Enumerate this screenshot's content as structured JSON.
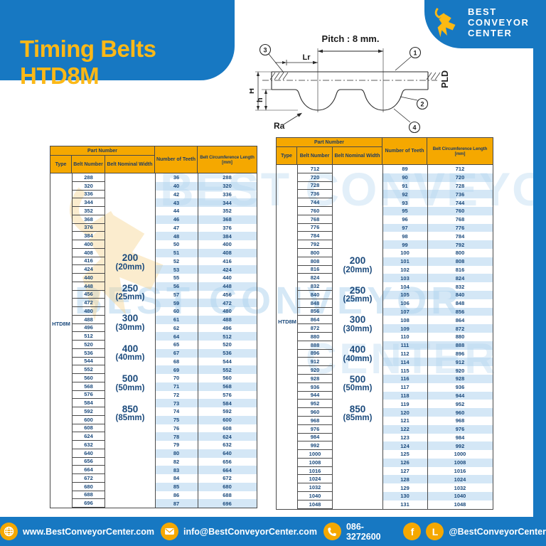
{
  "title": "Timing Belts HTD8M",
  "logo": {
    "line1": "BEST",
    "line2": "CONVEYOR",
    "line3": "CENTER"
  },
  "diagram": {
    "pitch": "Pitch : 8 mm.",
    "lr": "Lr",
    "H": "H",
    "h": "h",
    "ra": "Ra",
    "pld": "PLD",
    "callout_1": "1",
    "callout_2": "2",
    "callout_3": "3",
    "callout_4": "4"
  },
  "table": {
    "header": {
      "part_number": "Part Number",
      "type": "Type",
      "belt_number": "Belt Number",
      "belt_nominal_width": "Belt Nominal Width",
      "number_of_teeth": "Number of Teeth",
      "belt_circumference": "Belt Circumference Length [mm]"
    },
    "type_value": "HTD8M",
    "widths": [
      {
        "v": "200",
        "mm": "(20mm)"
      },
      {
        "v": "250",
        "mm": "(25mm)"
      },
      {
        "v": "300",
        "mm": "(30mm)"
      },
      {
        "v": "400",
        "mm": "(40mm)"
      },
      {
        "v": "500",
        "mm": "(50mm)"
      },
      {
        "v": "850",
        "mm": "(85mm)"
      }
    ]
  },
  "left_table": {
    "rows": [
      [
        288,
        36,
        288
      ],
      [
        320,
        40,
        320
      ],
      [
        336,
        42,
        336
      ],
      [
        344,
        43,
        344
      ],
      [
        352,
        44,
        352
      ],
      [
        368,
        46,
        368
      ],
      [
        376,
        47,
        376
      ],
      [
        384,
        48,
        384
      ],
      [
        400,
        50,
        400
      ],
      [
        408,
        51,
        408
      ],
      [
        416,
        52,
        416
      ],
      [
        424,
        53,
        424
      ],
      [
        440,
        55,
        440
      ],
      [
        448,
        56,
        448
      ],
      [
        456,
        57,
        456
      ],
      [
        472,
        59,
        472
      ],
      [
        480,
        60,
        480
      ],
      [
        488,
        61,
        488
      ],
      [
        496,
        62,
        496
      ],
      [
        512,
        64,
        512
      ],
      [
        520,
        65,
        520
      ],
      [
        536,
        67,
        536
      ],
      [
        544,
        68,
        544
      ],
      [
        552,
        69,
        552
      ],
      [
        560,
        70,
        560
      ],
      [
        568,
        71,
        568
      ],
      [
        576,
        72,
        576
      ],
      [
        584,
        73,
        584
      ],
      [
        592,
        74,
        592
      ],
      [
        600,
        75,
        600
      ],
      [
        608,
        76,
        608
      ],
      [
        624,
        78,
        624
      ],
      [
        632,
        79,
        632
      ],
      [
        640,
        80,
        640
      ],
      [
        656,
        82,
        656
      ],
      [
        664,
        83,
        664
      ],
      [
        672,
        84,
        672
      ],
      [
        680,
        85,
        680
      ],
      [
        688,
        86,
        688
      ],
      [
        696,
        87,
        696
      ]
    ]
  },
  "right_table": {
    "rows": [
      [
        712,
        89,
        712
      ],
      [
        720,
        90,
        720
      ],
      [
        728,
        91,
        728
      ],
      [
        736,
        92,
        736
      ],
      [
        744,
        93,
        744
      ],
      [
        760,
        95,
        760
      ],
      [
        768,
        96,
        768
      ],
      [
        776,
        97,
        776
      ],
      [
        784,
        98,
        784
      ],
      [
        792,
        99,
        792
      ],
      [
        800,
        100,
        800
      ],
      [
        808,
        101,
        808
      ],
      [
        816,
        102,
        816
      ],
      [
        824,
        103,
        824
      ],
      [
        832,
        104,
        832
      ],
      [
        840,
        105,
        840
      ],
      [
        848,
        106,
        848
      ],
      [
        856,
        107,
        856
      ],
      [
        864,
        108,
        864
      ],
      [
        872,
        109,
        872
      ],
      [
        880,
        110,
        880
      ],
      [
        888,
        111,
        888
      ],
      [
        896,
        112,
        896
      ],
      [
        912,
        114,
        912
      ],
      [
        920,
        115,
        920
      ],
      [
        928,
        116,
        928
      ],
      [
        936,
        117,
        936
      ],
      [
        944,
        118,
        944
      ],
      [
        952,
        119,
        952
      ],
      [
        960,
        120,
        960
      ],
      [
        968,
        121,
        968
      ],
      [
        976,
        122,
        976
      ],
      [
        984,
        123,
        984
      ],
      [
        992,
        124,
        992
      ],
      [
        1000,
        125,
        1000
      ],
      [
        1008,
        126,
        1008
      ],
      [
        1016,
        127,
        1016
      ],
      [
        1024,
        128,
        1024
      ],
      [
        1032,
        129,
        1032
      ],
      [
        1040,
        130,
        1040
      ],
      [
        1048,
        131,
        1048
      ]
    ]
  },
  "footer": {
    "website": "www.BestConveyorCenter.com",
    "email": "info@BestConveyorCenter.com",
    "phone": "086-3272600",
    "social": "@BestConveyorCenter"
  },
  "watermark": {
    "line1": "BEST CONVEYOR",
    "line2": "CENTER",
    "line3": "CENTER"
  },
  "colors": {
    "blue": "#1778c2",
    "amber": "#f5a800",
    "navy": "#1b4a7c",
    "stripe": "#cfe3f4",
    "title_yellow": "#fcb817"
  }
}
